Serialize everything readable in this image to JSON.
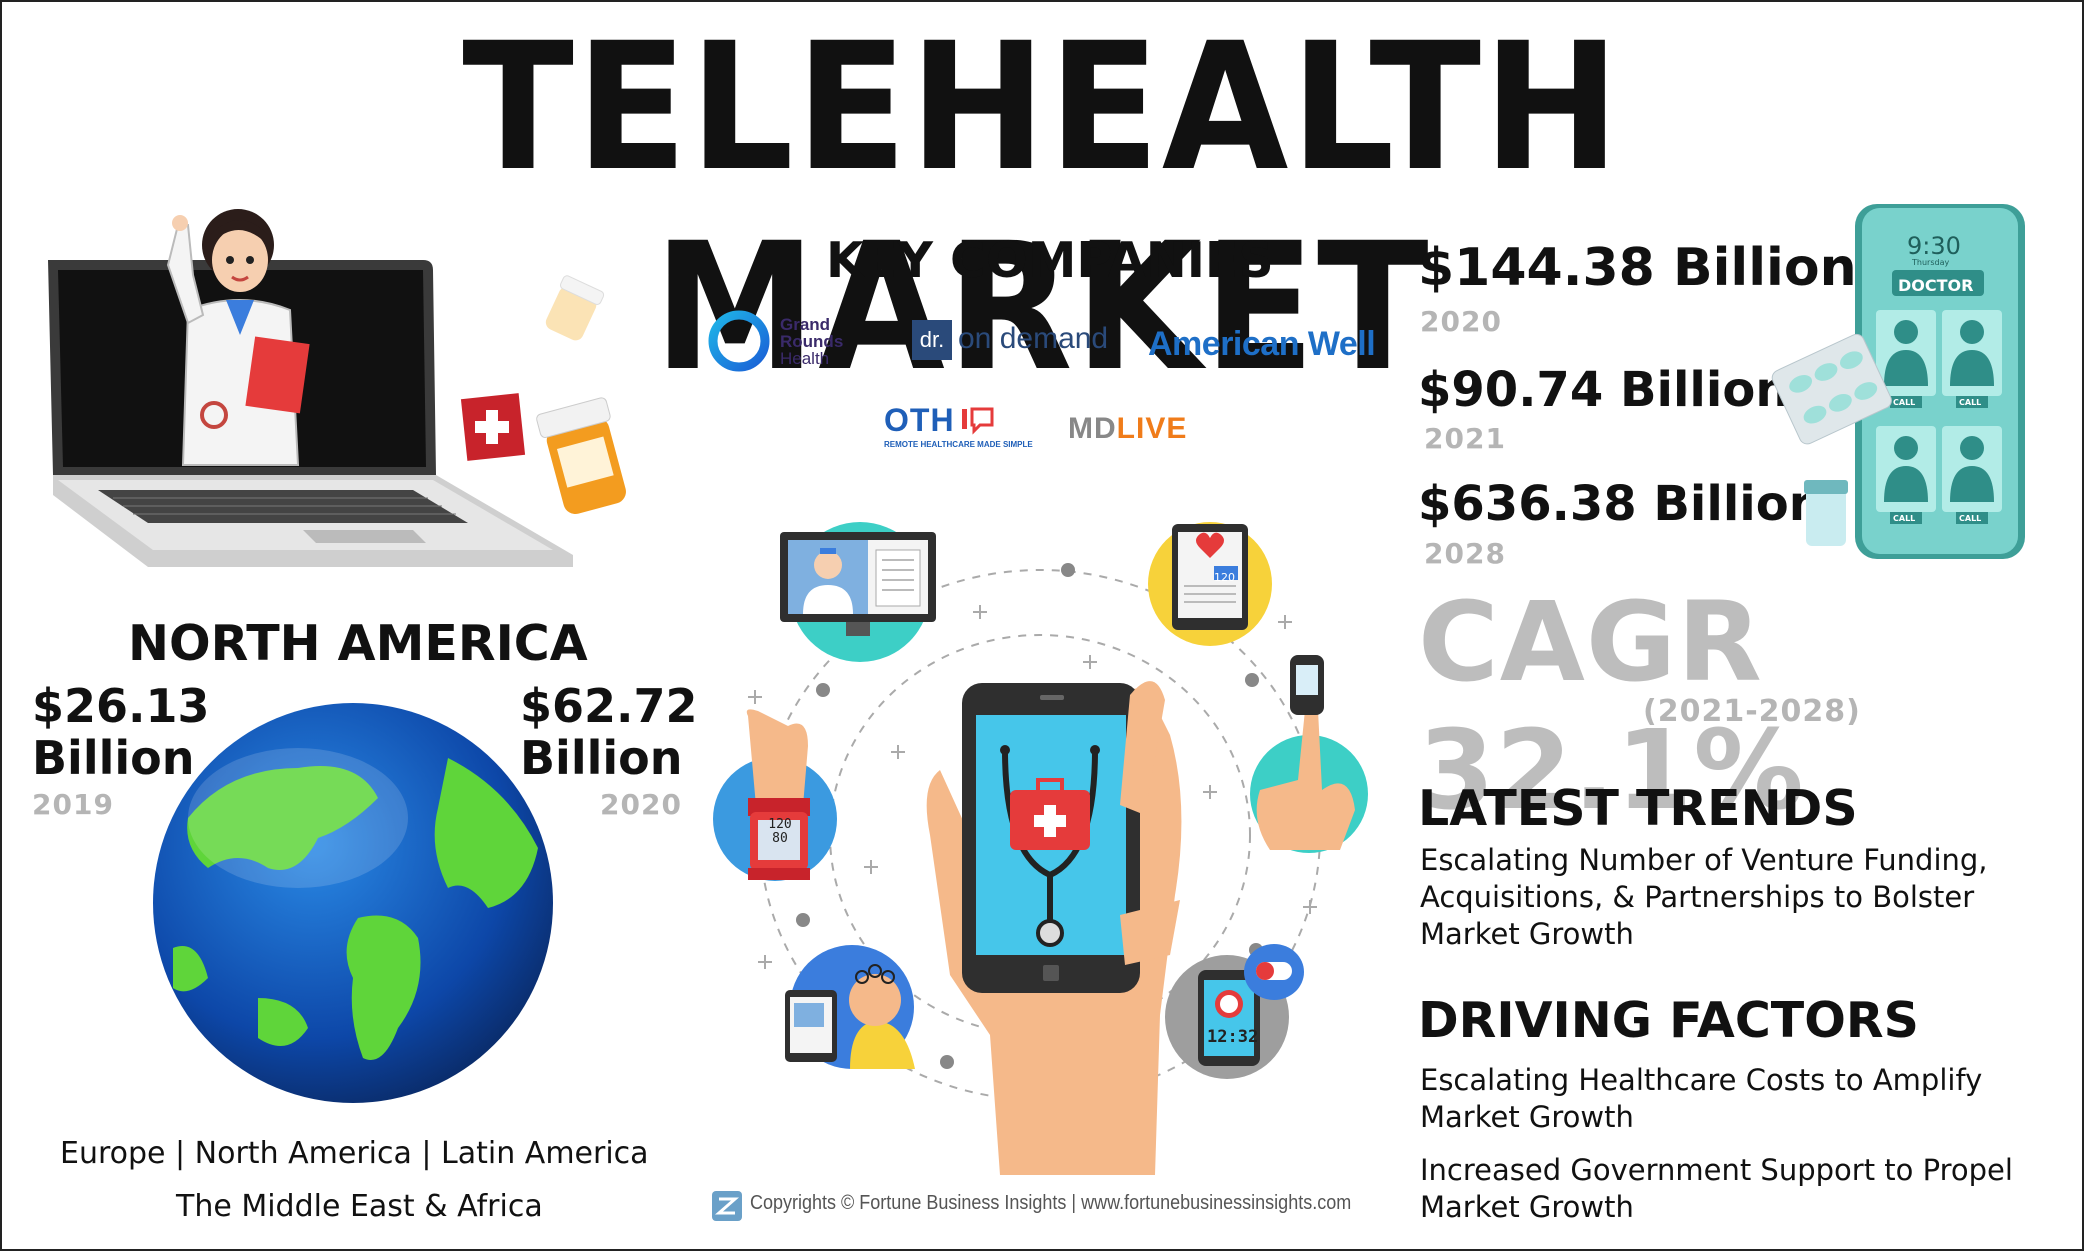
{
  "title": "TELEHEALTH MARKET",
  "key_companies": {
    "heading": "KEY COMPANIES",
    "grand_rounds": "Grand Rounds Health",
    "grand_rounds_l1": "Grand",
    "grand_rounds_l2": "Rounds",
    "grand_rounds_l3": "Health",
    "dr_on_demand": "on demand",
    "dr_mark": "dr.",
    "american_well": "American Well",
    "oth": "OTH",
    "oth_tag": "REMOTE HEALTHCARE MADE SIMPLE",
    "mdlive_md": "MD",
    "mdlive_live": "LIVE"
  },
  "market": {
    "v2020": "$144.38 Billion",
    "y2020": "2020",
    "v2021": "$90.74 Billion",
    "y2021": "2021",
    "v2028": "$636.38 Billion",
    "y2028": "2028",
    "cagr": "CAGR 32.1%",
    "cagr_period": "(2021-2028)"
  },
  "north_america": {
    "heading": "NORTH AMERICA",
    "left_value_l1": "$26.13",
    "left_value_l2": "Billion",
    "left_year": "2019",
    "right_value_l1": "$62.72",
    "right_value_l2": "Billion",
    "right_year": "2020"
  },
  "regions": {
    "line1": "Europe  |  North America  |  Latin America",
    "line2": "The Middle East & Africa"
  },
  "latest_trends": {
    "heading": "LATEST TRENDS",
    "text": "Escalating Number of Venture Funding, Acquisitions, & Partnerships to Bolster Market Growth"
  },
  "driving_factors": {
    "heading": "DRIVING FACTORS",
    "item1": "Escalating Healthcare Costs to Amplify Market Growth",
    "item2": "Increased Government Support to Propel Market Growth"
  },
  "phone": {
    "time": "9:30",
    "day": "Thursday",
    "label": "DOCTOR",
    "call": "CALL"
  },
  "bp_reading_top": "120",
  "bp_reading_bottom": "80",
  "clock_reading": "12:32",
  "tablet_reading": "120",
  "copyright": "Copyrights © Fortune Business Insights | www.fortunebusinessinsights.com",
  "colors": {
    "teal": "#3dcfc6",
    "yellow": "#f7d23a",
    "blue": "#3b7ddd",
    "grey": "#bdbdbd",
    "red": "#e53b3b",
    "skin": "#f5b98a"
  }
}
